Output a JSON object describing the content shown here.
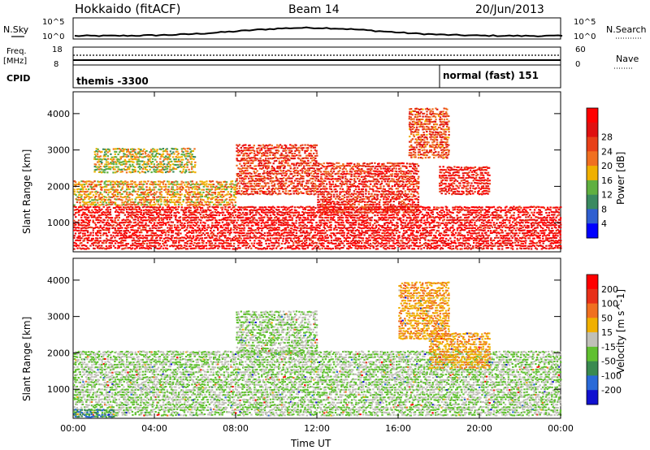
{
  "header": {
    "station": "Hokkaido (fitACF)",
    "beam": "Beam 14",
    "date": "20/Jun/2013"
  },
  "top_panel": {
    "nsky_label": "N.Sky",
    "nsearch_label": "N.Search",
    "nsky_ticks": [
      "10^5",
      "10^0"
    ],
    "freq_label": "Freq.",
    "freq_unit": "[MHz]",
    "freq_ticks": [
      "18",
      "8"
    ],
    "nave_label": "Nave",
    "nave_ticks": [
      "60",
      "0"
    ],
    "cpid_label": "CPID",
    "cpid_left": "themis -3300",
    "cpid_right": "normal (fast) 151"
  },
  "chart_data": [
    {
      "type": "heatmap",
      "name": "power",
      "ylabel": "Slant Range [km]",
      "y_ticks": [
        1000,
        2000,
        3000,
        4000
      ],
      "ylim": [
        200,
        4600
      ],
      "xlim": [
        0,
        24
      ],
      "colorbar": {
        "label": "Power [dB]",
        "ticks": [
          "4",
          "8",
          "12",
          "16",
          "20",
          "24",
          "28"
        ],
        "colors": [
          "#0000ff",
          "#2f5fd0",
          "#3a8a60",
          "#60b040",
          "#f0b000",
          "#f07020",
          "#e84018",
          "#e01010",
          "#ff0000"
        ]
      },
      "bands": [
        {
          "t0": 0.0,
          "t1": 24.0,
          "r0": 300,
          "r1": 1500,
          "level": 0.9
        },
        {
          "t0": 0.0,
          "t1": 8.0,
          "r0": 1500,
          "r1": 2200,
          "level": 0.55
        },
        {
          "t0": 8.0,
          "t1": 12.0,
          "r0": 1800,
          "r1": 3200,
          "level": 0.75
        },
        {
          "t0": 12.0,
          "t1": 17.0,
          "r0": 1300,
          "r1": 2700,
          "level": 0.8
        },
        {
          "t0": 16.5,
          "t1": 18.5,
          "r0": 2800,
          "r1": 4200,
          "level": 0.7
        },
        {
          "t0": 18.0,
          "t1": 20.5,
          "r0": 1800,
          "r1": 2600,
          "level": 0.85
        },
        {
          "t0": 1.0,
          "t1": 6.0,
          "r0": 2400,
          "r1": 3100,
          "level": 0.45
        }
      ]
    },
    {
      "type": "heatmap",
      "name": "velocity",
      "ylabel": "Slant Range [km]",
      "xlabel": "Time UT",
      "x_ticks": [
        "00:00",
        "04:00",
        "08:00",
        "12:00",
        "16:00",
        "20:00",
        "00:00"
      ],
      "y_ticks": [
        1000,
        2000,
        3000,
        4000
      ],
      "ylim": [
        200,
        4600
      ],
      "xlim": [
        0,
        24
      ],
      "colorbar": {
        "label": "Velocity [m s^-1]",
        "ticks": [
          "200",
          "100",
          "50",
          "15",
          "-15",
          "-50",
          "-100",
          "-200"
        ],
        "colors": [
          "#1010d0",
          "#2a6ad8",
          "#3a8a50",
          "#60c030",
          "#c0c0b8",
          "#f0b000",
          "#f07020",
          "#e83018",
          "#ff0000"
        ]
      },
      "bands": [
        {
          "t0": 0.0,
          "t1": 24.0,
          "r0": 300,
          "r1": 2100,
          "level": 0.45
        },
        {
          "t0": 8.0,
          "t1": 12.0,
          "r0": 2000,
          "r1": 3200,
          "level": 0.45
        },
        {
          "t0": 16.0,
          "t1": 18.5,
          "r0": 2400,
          "r1": 4000,
          "level": 0.65
        },
        {
          "t0": 17.5,
          "t1": 20.5,
          "r0": 1600,
          "r1": 2600,
          "level": 0.65
        },
        {
          "t0": 0.0,
          "t1": 2.0,
          "r0": 250,
          "r1": 500,
          "level": 0.25
        }
      ]
    }
  ]
}
